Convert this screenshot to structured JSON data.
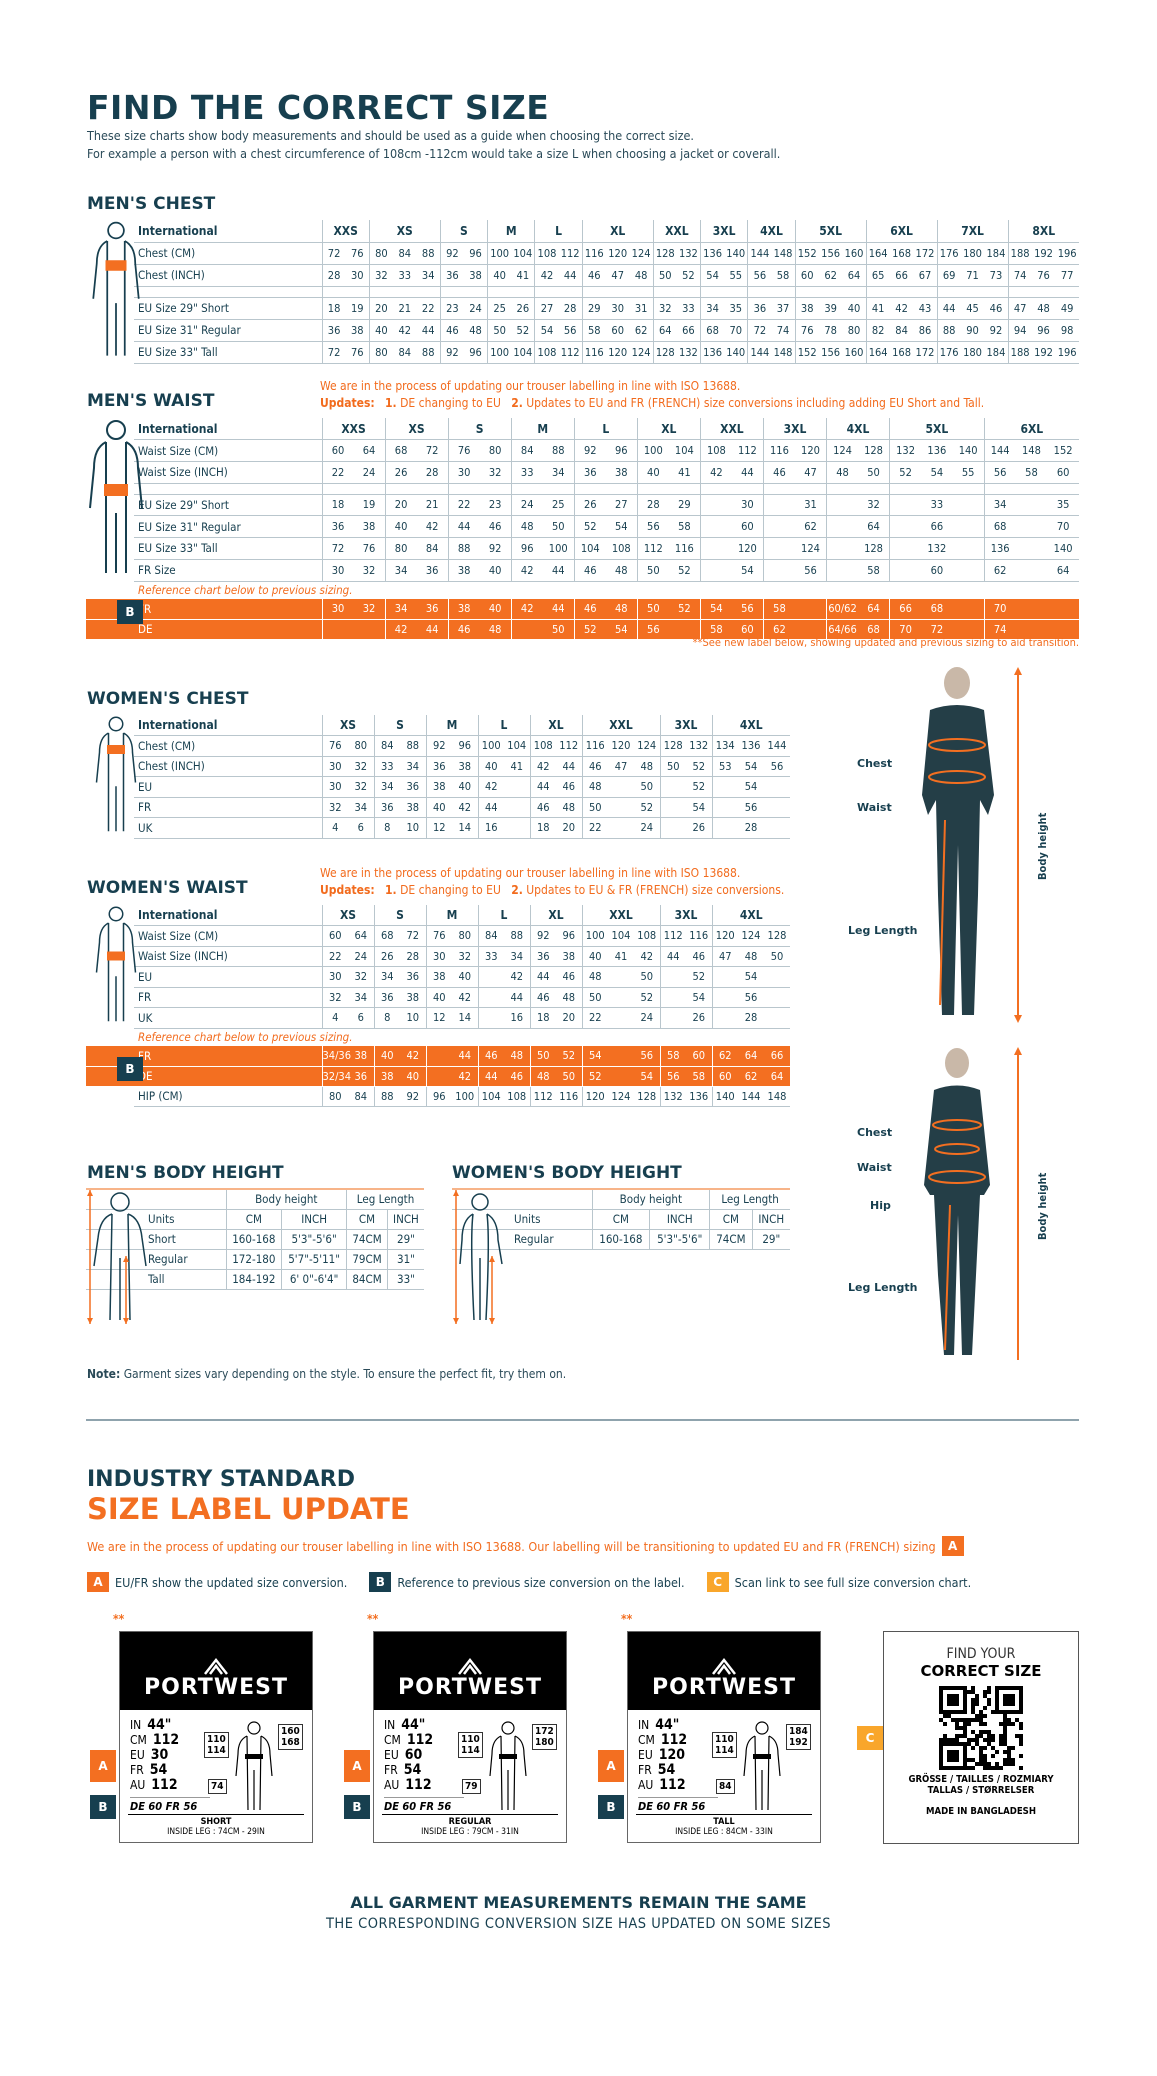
{
  "colors": {
    "navy": "#173f4f",
    "orange": "#f36f21",
    "yellow": "#f9a62b",
    "grid": "#b9c6cd"
  },
  "header": {
    "title": "FIND THE CORRECT SIZE",
    "intro": [
      "These size charts show body measurements and should be used as a guide when choosing the correct size.",
      "For example a person with a chest circumference of 108cm -112cm would take a size L when choosing a jacket or coverall."
    ]
  },
  "mens_chest": {
    "title": "MEN'S CHEST",
    "header_label": "International",
    "sizes": [
      {
        "label": "XXS",
        "cols": 2
      },
      {
        "label": "XS",
        "cols": 3
      },
      {
        "label": "S",
        "cols": 2
      },
      {
        "label": "M",
        "cols": 2
      },
      {
        "label": "L",
        "cols": 2
      },
      {
        "label": "XL",
        "cols": 3
      },
      {
        "label": "XXL",
        "cols": 2
      },
      {
        "label": "3XL",
        "cols": 2
      },
      {
        "label": "4XL",
        "cols": 2
      },
      {
        "label": "5XL",
        "cols": 3
      },
      {
        "label": "6XL",
        "cols": 3
      },
      {
        "label": "7XL",
        "cols": 3
      },
      {
        "label": "8XL",
        "cols": 3
      }
    ],
    "rows": [
      {
        "label": "Chest (CM)",
        "values": [
          "72",
          "76",
          "80",
          "84",
          "88",
          "92",
          "96",
          "100",
          "104",
          "108",
          "112",
          "116",
          "120",
          "124",
          "128",
          "132",
          "136",
          "140",
          "144",
          "148",
          "152",
          "156",
          "160",
          "164",
          "168",
          "172",
          "176",
          "180",
          "184",
          "188",
          "192",
          "196"
        ]
      },
      {
        "label": "Chest (INCH)",
        "values": [
          "28",
          "30",
          "32",
          "33",
          "34",
          "36",
          "38",
          "40",
          "41",
          "42",
          "44",
          "46",
          "47",
          "48",
          "50",
          "52",
          "54",
          "55",
          "56",
          "58",
          "60",
          "62",
          "64",
          "65",
          "66",
          "67",
          "69",
          "71",
          "73",
          "74",
          "76",
          "77"
        ]
      },
      {
        "label": "EU Size 29\" Short",
        "values": [
          "18",
          "19",
          "20",
          "21",
          "22",
          "23",
          "24",
          "25",
          "26",
          "27",
          "28",
          "29",
          "30",
          "31",
          "32",
          "33",
          "34",
          "35",
          "36",
          "37",
          "38",
          "39",
          "40",
          "41",
          "42",
          "43",
          "44",
          "45",
          "46",
          "47",
          "48",
          "49"
        ]
      },
      {
        "label": "EU Size 31\" Regular",
        "values": [
          "36",
          "38",
          "40",
          "42",
          "44",
          "46",
          "48",
          "50",
          "52",
          "54",
          "56",
          "58",
          "60",
          "62",
          "64",
          "66",
          "68",
          "70",
          "72",
          "74",
          "76",
          "78",
          "80",
          "82",
          "84",
          "86",
          "88",
          "90",
          "92",
          "94",
          "96",
          "98"
        ]
      },
      {
        "label": "EU Size 33\" Tall",
        "values": [
          "72",
          "76",
          "80",
          "84",
          "88",
          "92",
          "96",
          "100",
          "104",
          "108",
          "112",
          "116",
          "120",
          "124",
          "128",
          "132",
          "136",
          "140",
          "144",
          "148",
          "152",
          "156",
          "160",
          "164",
          "168",
          "172",
          "176",
          "180",
          "184",
          "188",
          "192",
          "196"
        ]
      }
    ]
  },
  "mens_waist": {
    "title": "MEN'S WAIST",
    "notice": "We are in the process of updating our trouser labelling in line with ISO 13688.",
    "updates_label": "Updates:",
    "update_1_num": "1.",
    "update_1": "DE changing to EU",
    "update_2_num": "2.",
    "update_2": "Updates to EU and FR (FRENCH) size conversions including adding EU Short and Tall.",
    "header_label": "International",
    "sizes": [
      {
        "label": "XXS",
        "cols": 2
      },
      {
        "label": "XS",
        "cols": 2
      },
      {
        "label": "S",
        "cols": 2
      },
      {
        "label": "M",
        "cols": 2
      },
      {
        "label": "L",
        "cols": 2
      },
      {
        "label": "XL",
        "cols": 2
      },
      {
        "label": "XXL",
        "cols": 2
      },
      {
        "label": "3XL",
        "cols": 2
      },
      {
        "label": "4XL",
        "cols": 2
      },
      {
        "label": "5XL",
        "cols": 3
      },
      {
        "label": "6XL",
        "cols": 3
      }
    ],
    "rows": [
      {
        "label": "Waist Size (CM)",
        "values": [
          "60",
          "64",
          "68",
          "72",
          "76",
          "80",
          "84",
          "88",
          "92",
          "96",
          "100",
          "104",
          "108",
          "112",
          "116",
          "120",
          "124",
          "128",
          "132",
          "136",
          "140",
          "144",
          "148",
          "152"
        ]
      },
      {
        "label": "Waist Size (INCH)",
        "values": [
          "22",
          "24",
          "26",
          "28",
          "30",
          "32",
          "33",
          "34",
          "36",
          "38",
          "40",
          "41",
          "42",
          "44",
          "46",
          "47",
          "48",
          "50",
          "52",
          "54",
          "55",
          "56",
          "58",
          "60"
        ]
      },
      {
        "label": "EU Size 29\" Short",
        "values": [
          "18",
          "19",
          "20",
          "21",
          "22",
          "23",
          "24",
          "25",
          "26",
          "27",
          "28",
          "29",
          "",
          "30",
          "",
          "31",
          "",
          "32",
          "",
          "33",
          "",
          "34",
          "",
          "35"
        ]
      },
      {
        "label": "EU Size 31\" Regular",
        "values": [
          "36",
          "38",
          "40",
          "42",
          "44",
          "46",
          "48",
          "50",
          "52",
          "54",
          "56",
          "58",
          "",
          "60",
          "",
          "62",
          "",
          "64",
          "",
          "66",
          "",
          "68",
          "",
          "70"
        ]
      },
      {
        "label": "EU Size 33\" Tall",
        "values": [
          "72",
          "76",
          "80",
          "84",
          "88",
          "92",
          "96",
          "100",
          "104",
          "108",
          "112",
          "116",
          "",
          "120",
          "",
          "124",
          "",
          "128",
          "",
          "132",
          "",
          "136",
          "",
          "140"
        ]
      },
      {
        "label": "FR Size",
        "values": [
          "30",
          "32",
          "34",
          "36",
          "38",
          "40",
          "42",
          "44",
          "46",
          "48",
          "50",
          "52",
          "",
          "54",
          "",
          "56",
          "",
          "58",
          "",
          "60",
          "",
          "62",
          "",
          "64"
        ]
      }
    ],
    "ref_note": "Reference chart below to previous sizing.",
    "ref_badge": "B",
    "ref_rows": [
      {
        "label": "FR",
        "values": [
          "30",
          "32",
          "34",
          "36",
          "38",
          "40",
          "42",
          "44",
          "46",
          "48",
          "50",
          "52",
          "54",
          "56",
          "58",
          "",
          "60/62",
          "64",
          "66",
          "68",
          "",
          "70",
          "",
          ""
        ]
      },
      {
        "label": "DE",
        "values": [
          "",
          "",
          "42",
          "44",
          "46",
          "48",
          "",
          "50",
          "52",
          "54",
          "56",
          "",
          "58",
          "60",
          "62",
          "",
          "64/66",
          "68",
          "70",
          "72",
          "",
          "74",
          "",
          ""
        ]
      }
    ],
    "footnote": "**See new label below, showing updated and previous sizing to aid transition."
  },
  "womens_chest": {
    "title": "WOMEN'S CHEST",
    "header_label": "International",
    "sizes": [
      {
        "label": "XS",
        "cols": 2
      },
      {
        "label": "S",
        "cols": 2
      },
      {
        "label": "M",
        "cols": 2
      },
      {
        "label": "L",
        "cols": 2
      },
      {
        "label": "XL",
        "cols": 2
      },
      {
        "label": "XXL",
        "cols": 3
      },
      {
        "label": "3XL",
        "cols": 2
      },
      {
        "label": "4XL",
        "cols": 3
      }
    ],
    "rows": [
      {
        "label": "Chest (CM)",
        "values": [
          "76",
          "80",
          "84",
          "88",
          "92",
          "96",
          "100",
          "104",
          "108",
          "112",
          "116",
          "120",
          "124",
          "128",
          "132",
          "134",
          "136",
          "144"
        ]
      },
      {
        "label": "Chest (INCH)",
        "values": [
          "30",
          "32",
          "33",
          "34",
          "36",
          "38",
          "40",
          "41",
          "42",
          "44",
          "46",
          "47",
          "48",
          "50",
          "52",
          "53",
          "54",
          "56"
        ]
      },
      {
        "label": "EU",
        "values": [
          "30",
          "32",
          "34",
          "36",
          "38",
          "40",
          "42",
          "",
          "44",
          "46",
          "48",
          "",
          "50",
          "",
          "52",
          "",
          "54",
          ""
        ]
      },
      {
        "label": "FR",
        "values": [
          "32",
          "34",
          "36",
          "38",
          "40",
          "42",
          "44",
          "",
          "46",
          "48",
          "50",
          "",
          "52",
          "",
          "54",
          "",
          "56",
          ""
        ]
      },
      {
        "label": "UK",
        "values": [
          "4",
          "6",
          "8",
          "10",
          "12",
          "14",
          "16",
          "",
          "18",
          "20",
          "22",
          "",
          "24",
          "",
          "26",
          "",
          "28",
          ""
        ]
      }
    ]
  },
  "womens_waist": {
    "title": "WOMEN'S WAIST",
    "notice": "We are in the process of updating our trouser labelling in line with ISO 13688.",
    "updates_label": "Updates:",
    "update_1_num": "1.",
    "update_1": "DE changing to EU",
    "update_2_num": "2.",
    "update_2": "Updates to EU & FR (FRENCH) size conversions.",
    "header_label": "International",
    "sizes": [
      {
        "label": "XS",
        "cols": 2
      },
      {
        "label": "S",
        "cols": 2
      },
      {
        "label": "M",
        "cols": 2
      },
      {
        "label": "L",
        "cols": 2
      },
      {
        "label": "XL",
        "cols": 2
      },
      {
        "label": "XXL",
        "cols": 3
      },
      {
        "label": "3XL",
        "cols": 2
      },
      {
        "label": "4XL",
        "cols": 3
      }
    ],
    "rows": [
      {
        "label": "Waist Size (CM)",
        "values": [
          "60",
          "64",
          "68",
          "72",
          "76",
          "80",
          "84",
          "88",
          "92",
          "96",
          "100",
          "104",
          "108",
          "112",
          "116",
          "120",
          "124",
          "128"
        ]
      },
      {
        "label": "Waist Size (INCH)",
        "values": [
          "22",
          "24",
          "26",
          "28",
          "30",
          "32",
          "33",
          "34",
          "36",
          "38",
          "40",
          "41",
          "42",
          "44",
          "46",
          "47",
          "48",
          "50"
        ]
      },
      {
        "label": "EU",
        "values": [
          "30",
          "32",
          "34",
          "36",
          "38",
          "40",
          "",
          "42",
          "44",
          "46",
          "48",
          "",
          "50",
          "",
          "52",
          "",
          "54",
          ""
        ]
      },
      {
        "label": "FR",
        "values": [
          "32",
          "34",
          "36",
          "38",
          "40",
          "42",
          "",
          "44",
          "46",
          "48",
          "50",
          "",
          "52",
          "",
          "54",
          "",
          "56",
          ""
        ]
      },
      {
        "label": "UK",
        "values": [
          "4",
          "6",
          "8",
          "10",
          "12",
          "14",
          "",
          "16",
          "18",
          "20",
          "22",
          "",
          "24",
          "",
          "26",
          "",
          "28",
          ""
        ]
      }
    ],
    "ref_note": "Reference chart below to previous sizing.",
    "ref_badge": "B",
    "ref_rows": [
      {
        "label": "FR",
        "values": [
          "34/36",
          "38",
          "40",
          "42",
          "",
          "44",
          "46",
          "48",
          "50",
          "52",
          "54",
          "",
          "56",
          "58",
          "60",
          "62",
          "64",
          "66"
        ]
      },
      {
        "label": "DE",
        "values": [
          "32/34",
          "36",
          "38",
          "40",
          "",
          "42",
          "44",
          "46",
          "48",
          "50",
          "52",
          "",
          "54",
          "56",
          "58",
          "60",
          "62",
          "64"
        ]
      }
    ],
    "after_rows": [
      {
        "label": "HIP (CM)",
        "values": [
          "80",
          "84",
          "88",
          "92",
          "96",
          "100",
          "104",
          "108",
          "112",
          "116",
          "120",
          "124",
          "128",
          "132",
          "136",
          "140",
          "144",
          "148"
        ]
      }
    ]
  },
  "mens_height": {
    "title": "MEN'S BODY HEIGHT",
    "group_1": "Body height",
    "group_2": "Leg Length",
    "units_label": "Units",
    "units": [
      "CM",
      "INCH",
      "CM",
      "INCH"
    ],
    "rows": [
      {
        "label": "Short",
        "values": [
          "160-168",
          "5'3\"-5'6\"",
          "74CM",
          "29\""
        ]
      },
      {
        "label": "Regular",
        "values": [
          "172-180",
          "5'7\"-5'11\"",
          "79CM",
          "31\""
        ]
      },
      {
        "label": "Tall",
        "values": [
          "184-192",
          "6' 0\"-6'4\"",
          "84CM",
          "33\""
        ]
      }
    ]
  },
  "womens_height": {
    "title": "WOMEN'S BODY HEIGHT",
    "group_1": "Body height",
    "group_2": "Leg Length",
    "units_label": "Units",
    "units": [
      "CM",
      "INCH",
      "CM",
      "INCH"
    ],
    "rows": [
      {
        "label": "Regular",
        "values": [
          "160-168",
          "5'3\"-5'6\"",
          "74CM",
          "29\""
        ]
      }
    ]
  },
  "photos": {
    "man": {
      "chest": "Chest",
      "waist": "Waist",
      "leg": "Leg Length",
      "height": "Body height"
    },
    "woman": {
      "chest": "Chest",
      "waist": "Waist",
      "hip": "Hip",
      "leg": "Leg Length",
      "height": "Body height"
    }
  },
  "note": {
    "label": "Note:",
    "text": " Garment sizes vary depending on the style. To ensure the perfect fit, try them on."
  },
  "update": {
    "title_1": "INDUSTRY STANDARD",
    "title_2": "SIZE LABEL UPDATE",
    "text": "We are in the process of updating our trouser labelling in line with ISO 13688. Our labelling will be transitioning to updated EU and FR (FRENCH) sizing",
    "legend": [
      {
        "badge": "A",
        "text": "EU/FR show the updated size conversion."
      },
      {
        "badge": "B",
        "text": "Reference to previous size conversion on the label."
      },
      {
        "badge": "C",
        "text": "Scan link to see full size conversion chart."
      }
    ]
  },
  "labels": [
    {
      "stars": "**",
      "brand": "PORTWEST",
      "rows": [
        [
          "IN",
          "44\""
        ],
        [
          "CM",
          "112"
        ],
        [
          "EU",
          "30"
        ],
        [
          "FR",
          "54"
        ],
        [
          "AU",
          "112"
        ]
      ],
      "old": "DE 60 FR 56",
      "waist": [
        "110",
        "114"
      ],
      "height": [
        "160",
        "168"
      ],
      "leg": "74",
      "fit": "SHORT",
      "inside": "INSIDE LEG : 74CM - 29IN"
    },
    {
      "stars": "**",
      "brand": "PORTWEST",
      "rows": [
        [
          "IN",
          "44\""
        ],
        [
          "CM",
          "112"
        ],
        [
          "EU",
          "60"
        ],
        [
          "FR",
          "54"
        ],
        [
          "AU",
          "112"
        ]
      ],
      "old": "DE 60 FR 56",
      "waist": [
        "110",
        "114"
      ],
      "height": [
        "172",
        "180"
      ],
      "leg": "79",
      "fit": "REGULAR",
      "inside": "INSIDE LEG : 79CM - 31IN"
    },
    {
      "stars": "**",
      "brand": "PORTWEST",
      "rows": [
        [
          "IN",
          "44\""
        ],
        [
          "CM",
          "112"
        ],
        [
          "EU",
          "120"
        ],
        [
          "FR",
          "54"
        ],
        [
          "AU",
          "112"
        ]
      ],
      "old": "DE 60 FR 56",
      "waist": [
        "110",
        "114"
      ],
      "height": [
        "184",
        "192"
      ],
      "leg": "84",
      "fit": "TALL",
      "inside": "INSIDE LEG : 84CM - 33IN"
    }
  ],
  "qr_card": {
    "line_1": "FIND YOUR",
    "line_2": "CORRECT SIZE",
    "lang_1": "GRÖSSE / TAILLES / ROZMIARY",
    "lang_2": "TALLAS / STØRRELSER",
    "made": "MADE IN BANGLADESH",
    "badge": "C"
  },
  "footer": {
    "line_1": "ALL GARMENT MEASUREMENTS REMAIN THE SAME",
    "line_2": "THE CORRESPONDING CONVERSION SIZE HAS UPDATED ON SOME SIZES"
  }
}
